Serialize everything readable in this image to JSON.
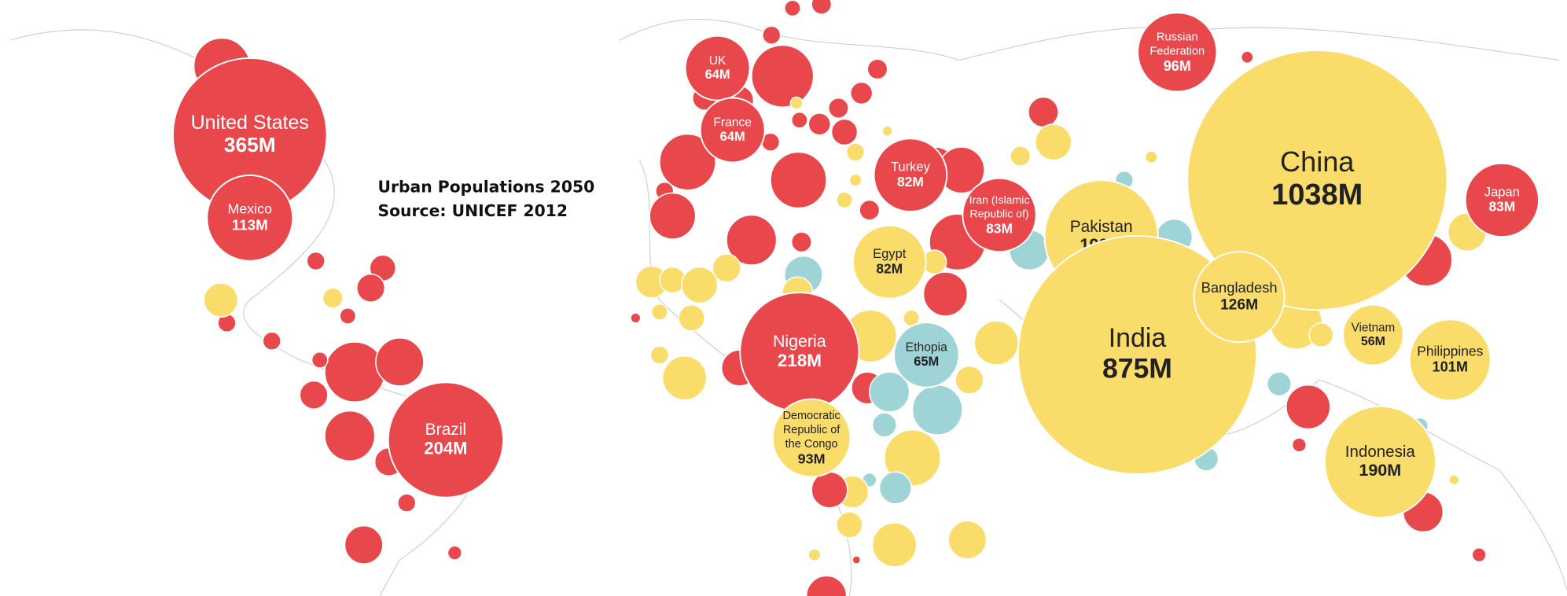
{
  "chart_data": {
    "type": "bubble-map",
    "title": "Urban Populations 2050",
    "subtitle": "Source: UNICEF 2012",
    "points": [
      {
        "label_lines": [
          "United States"
        ],
        "value": 365,
        "value_label": "365M",
        "color": "#e8474c"
      },
      {
        "label_lines": [
          "Mexico"
        ],
        "value": 113,
        "value_label": "113M",
        "color": "#e8474c"
      },
      {
        "label_lines": [
          "Brazil"
        ],
        "value": 204,
        "value_label": "204M",
        "color": "#e8474c"
      },
      {
        "label_lines": [
          "UK"
        ],
        "value": 64,
        "value_label": "64M",
        "color": "#e8474c"
      },
      {
        "label_lines": [
          "France"
        ],
        "value": 64,
        "value_label": "64M",
        "color": "#e8474c"
      },
      {
        "label_lines": [
          "Russian",
          "Federation"
        ],
        "value": 96,
        "value_label": "96M",
        "color": "#e8474c"
      },
      {
        "label_lines": [
          "Turkey"
        ],
        "value": 82,
        "value_label": "82M",
        "color": "#e8474c"
      },
      {
        "label_lines": [
          "Iran (Islamic",
          "Republic of)"
        ],
        "value": 83,
        "value_label": "83M",
        "color": "#e8474c"
      },
      {
        "label_lines": [
          "Egypt"
        ],
        "value": 82,
        "value_label": "82M",
        "color": "#f9dc6a"
      },
      {
        "label_lines": [
          "Pakistan"
        ],
        "value": 199,
        "value_label": "199M",
        "color": "#f9dc6a"
      },
      {
        "label_lines": [
          "China"
        ],
        "value": 1038,
        "value_label": "1038M",
        "color": "#f9dc6a"
      },
      {
        "label_lines": [
          "India"
        ],
        "value": 875,
        "value_label": "875M",
        "color": "#f9dc6a"
      },
      {
        "label_lines": [
          "Bangladesh"
        ],
        "value": 126,
        "value_label": "126M",
        "color": "#f9dc6a"
      },
      {
        "label_lines": [
          "Japan"
        ],
        "value": 83,
        "value_label": "83M",
        "color": "#e8474c"
      },
      {
        "label_lines": [
          "Vietnam"
        ],
        "value": 56,
        "value_label": "56M",
        "color": "#f9dc6a"
      },
      {
        "label_lines": [
          "Philippines"
        ],
        "value": 101,
        "value_label": "101M",
        "color": "#f9dc6a"
      },
      {
        "label_lines": [
          "Indonesia"
        ],
        "value": 190,
        "value_label": "190M",
        "color": "#f9dc6a"
      },
      {
        "label_lines": [
          "Nigeria"
        ],
        "value": 218,
        "value_label": "218M",
        "color": "#e8474c"
      },
      {
        "label_lines": [
          "Ethopia"
        ],
        "value": 65,
        "value_label": "65M",
        "color": "#9fd4d6"
      },
      {
        "label_lines": [
          "Democratic",
          "Republic of",
          "the Congo"
        ],
        "value": 93,
        "value_label": "93M",
        "color": "#f9dc6a"
      }
    ]
  }
}
